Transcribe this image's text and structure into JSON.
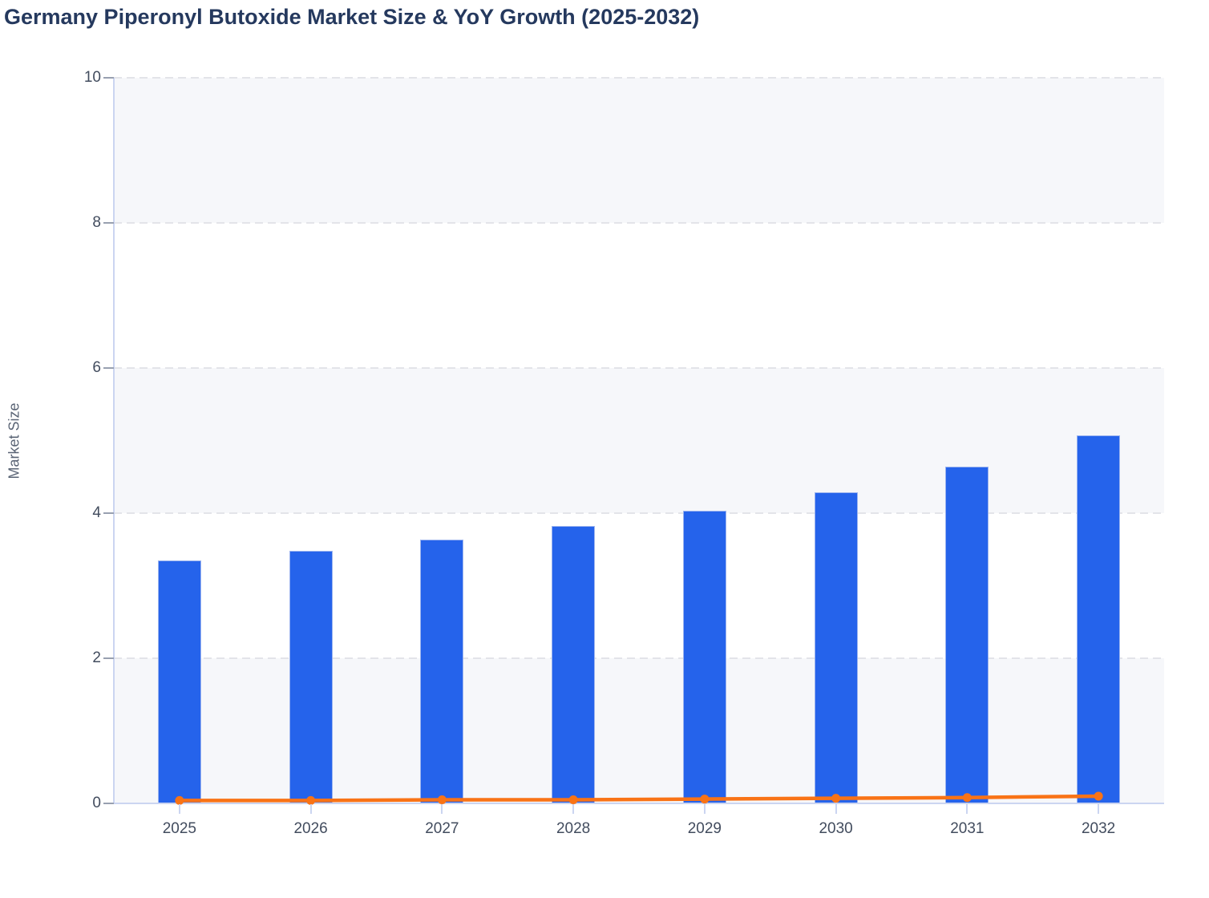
{
  "title": {
    "text": "Germany Piperonyl Butoxide Market Size & YoY Growth (2025-2032)",
    "color": "#25395e"
  },
  "chart_data": {
    "type": "bar",
    "title": "Germany Piperonyl Butoxide Market Size & YoY Growth (2025-2032)",
    "categories": [
      "2025",
      "2026",
      "2027",
      "2028",
      "2029",
      "2030",
      "2031",
      "2032"
    ],
    "series": [
      {
        "name": "Market Size",
        "type": "bar",
        "color": "#2563eb",
        "border_color": "#9cb4ef",
        "values": [
          3.35,
          3.48,
          3.63,
          3.82,
          4.03,
          4.29,
          4.64,
          5.07
        ]
      },
      {
        "name": "YoY Growth",
        "type": "line",
        "color": "#f97316",
        "marker": "circle",
        "values": [
          0.04,
          0.04,
          0.05,
          0.05,
          0.06,
          0.07,
          0.08,
          0.1
        ]
      }
    ],
    "xlabel": "",
    "ylabel": "Market Size",
    "ylim": [
      0,
      10
    ],
    "y_ticks": [
      0,
      2,
      4,
      6,
      8,
      10
    ],
    "grid": {
      "horizontal": "dashed",
      "color": "#e3e4e9",
      "alternating_bands": true,
      "band_color": "#f6f7fa"
    },
    "legend": "none",
    "axis_style": {
      "axis_line_color": "#cbd5f1",
      "y_tick_mark_color": "#98a0b0",
      "x_tick_mark_color": "#cbd5f1",
      "tick_label_color": "#424c5e",
      "ylabel_color": "#5a6475"
    }
  }
}
